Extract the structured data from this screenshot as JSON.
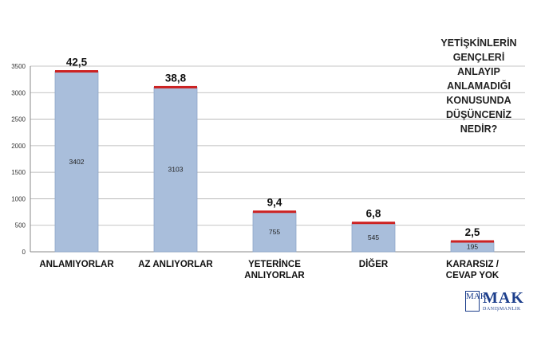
{
  "chart_data": {
    "type": "bar",
    "title_lines": [
      "YETİŞKİNLERİN",
      "GENÇLERİ",
      "ANLAYIP",
      "ANLAMADIĞI",
      "KONUSUNDA",
      "DÜŞÜNCENİZ",
      "NEDİR?"
    ],
    "categories": [
      [
        "ANLAMIYORLAR"
      ],
      [
        "AZ ANLIYORLAR"
      ],
      [
        "YETERİNCE",
        "ANLIYORLAR"
      ],
      [
        "DİĞER"
      ],
      [
        "KARARSIZ /",
        "CEVAP YOK"
      ]
    ],
    "values": [
      3402,
      3103,
      755,
      545,
      195
    ],
    "value_labels": [
      "3402",
      "3103",
      "755",
      "545",
      "195"
    ],
    "percent_labels": [
      "42,5",
      "38,8",
      "9,4",
      "6,8",
      "2,5"
    ],
    "ylim": [
      0,
      3500
    ],
    "yticks": [
      0,
      500,
      1000,
      1500,
      2000,
      2500,
      3000,
      3500
    ],
    "grid": true,
    "colors": {
      "bar": "#a9bedb",
      "bar_edge": "#8fa7c9",
      "bar_cap": "#cc2222",
      "grid": "#b0b0b0",
      "text": "#222222"
    }
  },
  "logo": {
    "mark": "M A K",
    "name": "MAK",
    "subtitle": "DANIŞMANLIK"
  }
}
